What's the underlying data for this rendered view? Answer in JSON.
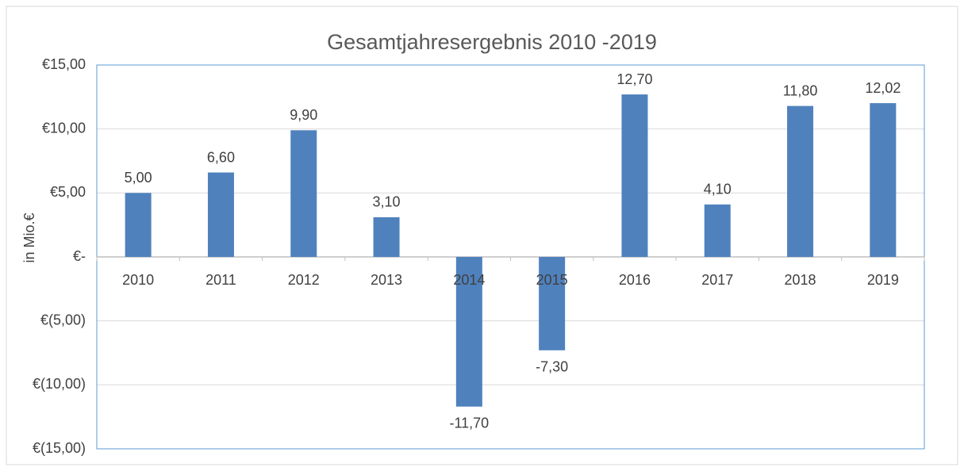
{
  "chart_data": {
    "type": "bar",
    "title": "Gesamtjahresergebnis 2010 -2019",
    "y_label": "in Mio.€",
    "categories": [
      "2010",
      "2011",
      "2012",
      "2013",
      "2014",
      "2015",
      "2016",
      "2017",
      "2018",
      "2019"
    ],
    "values": [
      5.0,
      6.6,
      9.9,
      3.1,
      -11.7,
      -7.3,
      12.7,
      4.1,
      11.8,
      12.02
    ],
    "value_labels": [
      "5,00",
      "6,60",
      "9,90",
      "3,10",
      "-11,70",
      "-7,30",
      "12,70",
      "4,10",
      "11,80",
      "12,02"
    ],
    "color": "#4f81bd",
    "ylim": [
      -15,
      15
    ],
    "yticks": [
      {
        "value": 15,
        "label": "€15,00"
      },
      {
        "value": 10,
        "label": "€10,00"
      },
      {
        "value": 5,
        "label": "€5,00"
      },
      {
        "value": 0,
        "label": "€-"
      },
      {
        "value": -5,
        "label": "€(5,00)"
      },
      {
        "value": -10,
        "label": "€(10,00)"
      },
      {
        "value": -15,
        "label": "€(15,00)"
      }
    ],
    "grid": true
  }
}
